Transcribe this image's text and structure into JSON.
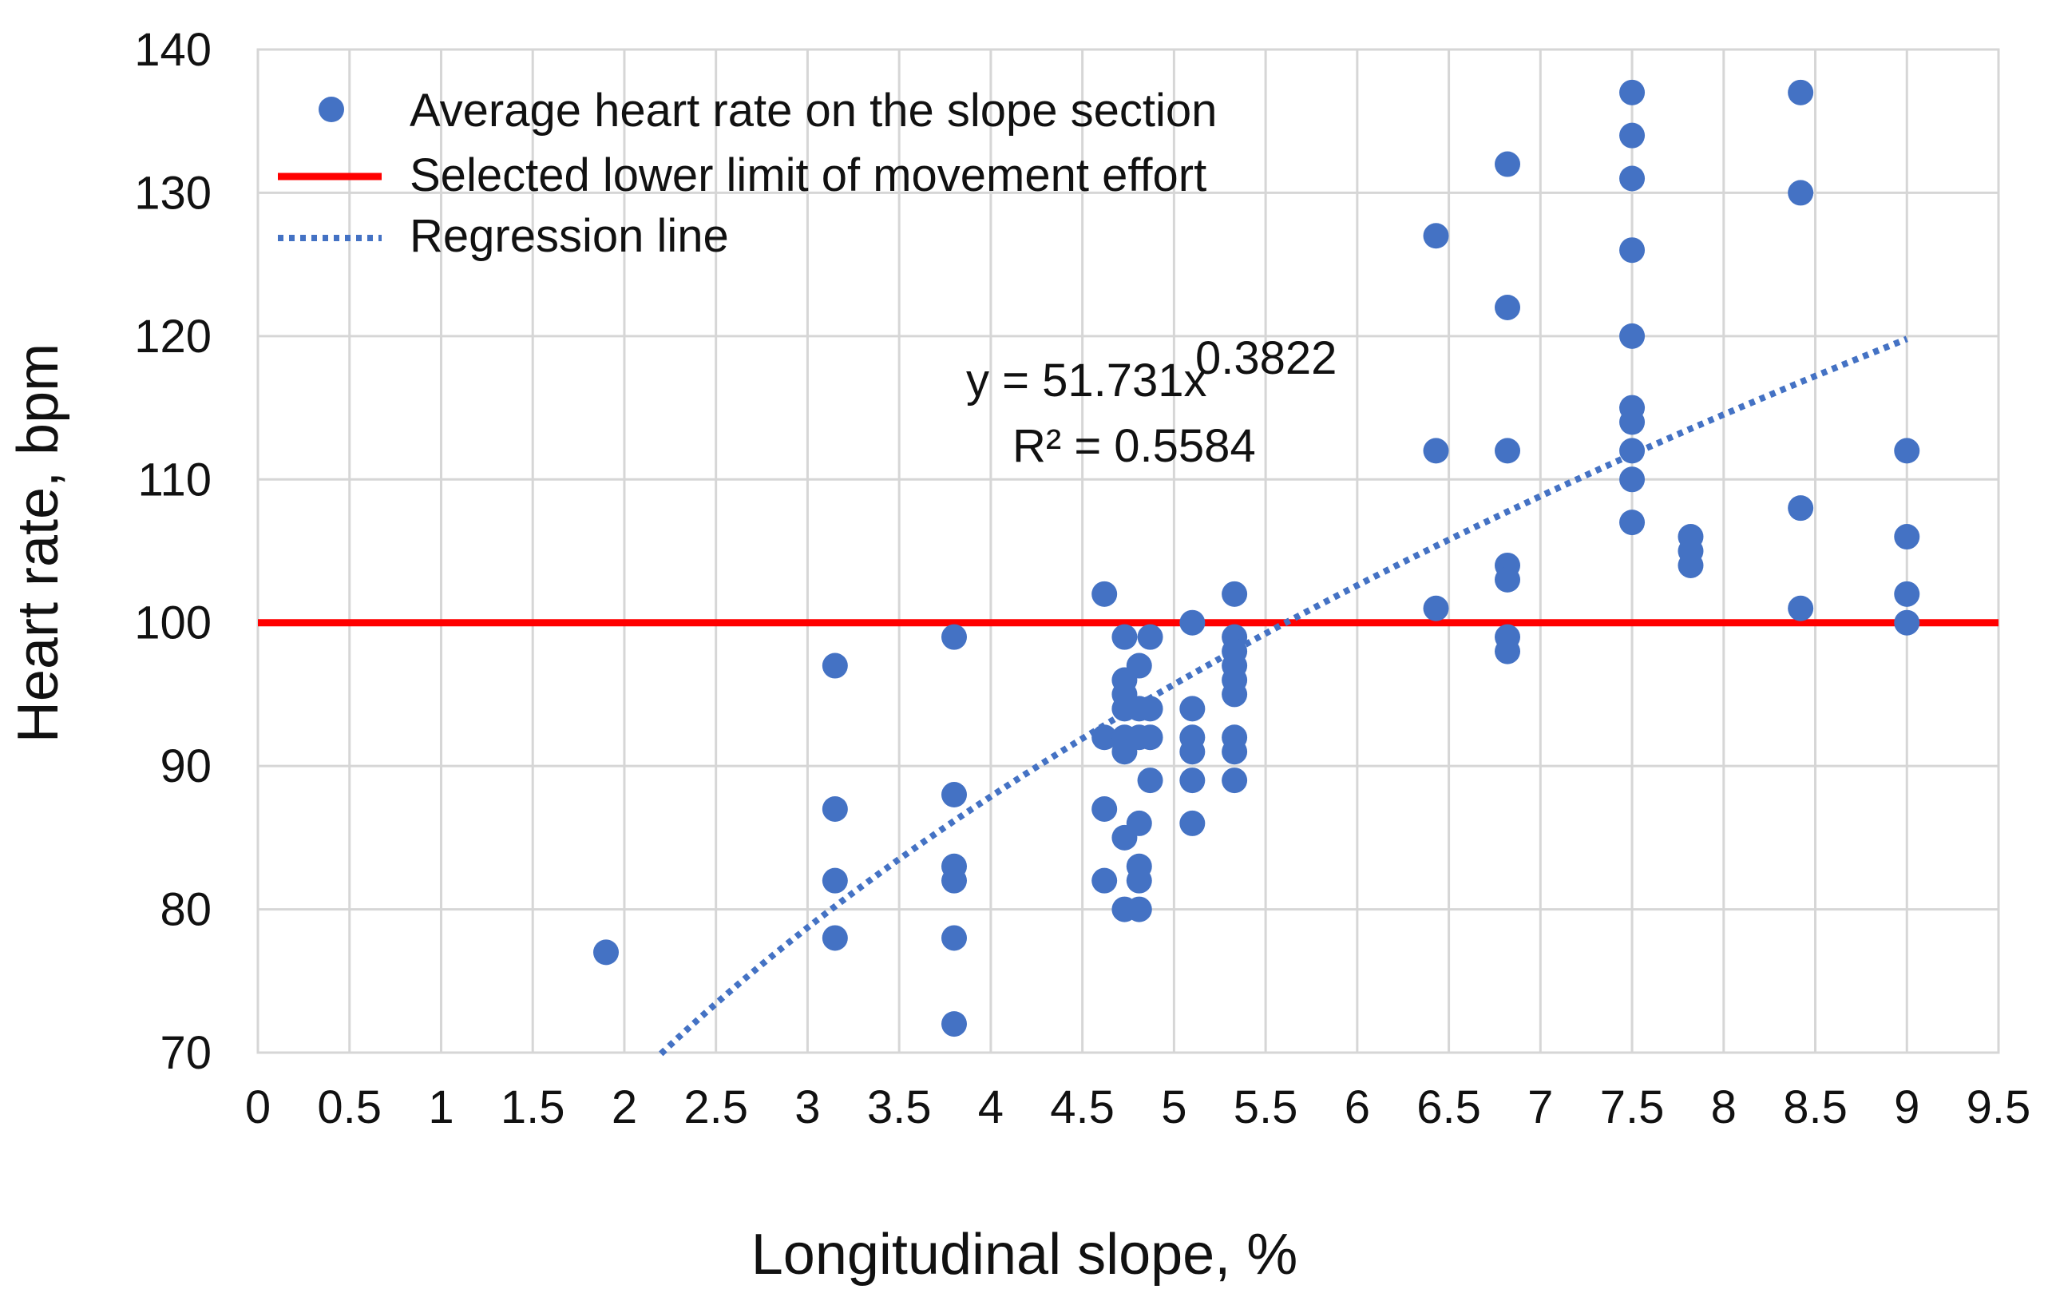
{
  "chart_data": {
    "type": "scatter",
    "title": "",
    "xlabel": "Longitudinal slope, %",
    "ylabel": "Heart rate, bpm",
    "xlim": [
      0,
      9.5
    ],
    "ylim": [
      70,
      140
    ],
    "x_ticks": [
      "0",
      "0.5",
      "1",
      "1.5",
      "2",
      "2.5",
      "3",
      "3.5",
      "4",
      "4.5",
      "5",
      "5.5",
      "6",
      "6.5",
      "7",
      "7.5",
      "8",
      "8.5",
      "9",
      "9.5"
    ],
    "y_ticks": [
      "70",
      "80",
      "90",
      "100",
      "110",
      "120",
      "130",
      "140"
    ],
    "grid": true,
    "legend_position": "top-left",
    "legend": [
      "Average heart rate on the slope section",
      "Selected lower limit of movement effort",
      "Regression line"
    ],
    "colors": {
      "points": "#4472C4",
      "limit_line": "#FF0000",
      "regression": "#4472C4"
    },
    "series": [
      {
        "name": "Average heart rate on the slope section",
        "type": "scatter",
        "points": [
          [
            1.9,
            77
          ],
          [
            3.15,
            97
          ],
          [
            3.15,
            87
          ],
          [
            3.15,
            82
          ],
          [
            3.15,
            78
          ],
          [
            3.8,
            99
          ],
          [
            3.8,
            88
          ],
          [
            3.8,
            83
          ],
          [
            3.8,
            82
          ],
          [
            3.8,
            78
          ],
          [
            3.8,
            72
          ],
          [
            4.62,
            102
          ],
          [
            4.62,
            92
          ],
          [
            4.62,
            87
          ],
          [
            4.62,
            82
          ],
          [
            4.73,
            99
          ],
          [
            4.73,
            96
          ],
          [
            4.73,
            95
          ],
          [
            4.73,
            94
          ],
          [
            4.73,
            92
          ],
          [
            4.73,
            91
          ],
          [
            4.73,
            85
          ],
          [
            4.73,
            80
          ],
          [
            4.81,
            97
          ],
          [
            4.81,
            94
          ],
          [
            4.81,
            92
          ],
          [
            4.81,
            86
          ],
          [
            4.81,
            83
          ],
          [
            4.81,
            82
          ],
          [
            4.81,
            80
          ],
          [
            4.87,
            99
          ],
          [
            4.87,
            94
          ],
          [
            4.87,
            92
          ],
          [
            4.87,
            89
          ],
          [
            5.1,
            100
          ],
          [
            5.1,
            94
          ],
          [
            5.1,
            92
          ],
          [
            5.1,
            91
          ],
          [
            5.1,
            89
          ],
          [
            5.1,
            86
          ],
          [
            5.33,
            102
          ],
          [
            5.33,
            99
          ],
          [
            5.33,
            98
          ],
          [
            5.33,
            97
          ],
          [
            5.33,
            96
          ],
          [
            5.33,
            95
          ],
          [
            5.33,
            92
          ],
          [
            5.33,
            91
          ],
          [
            5.33,
            89
          ],
          [
            6.43,
            127
          ],
          [
            6.43,
            112
          ],
          [
            6.43,
            101
          ],
          [
            6.82,
            132
          ],
          [
            6.82,
            122
          ],
          [
            6.82,
            112
          ],
          [
            6.82,
            104
          ],
          [
            6.82,
            103
          ],
          [
            6.82,
            99
          ],
          [
            6.82,
            98
          ],
          [
            7.5,
            137
          ],
          [
            7.5,
            134
          ],
          [
            7.5,
            131
          ],
          [
            7.5,
            126
          ],
          [
            7.5,
            120
          ],
          [
            7.5,
            115
          ],
          [
            7.5,
            114
          ],
          [
            7.5,
            112
          ],
          [
            7.5,
            110
          ],
          [
            7.5,
            107
          ],
          [
            7.82,
            106
          ],
          [
            7.82,
            105
          ],
          [
            7.82,
            104
          ],
          [
            8.42,
            137
          ],
          [
            8.42,
            130
          ],
          [
            8.42,
            108
          ],
          [
            8.42,
            101
          ],
          [
            9.0,
            112
          ],
          [
            9.0,
            106
          ],
          [
            9.0,
            102
          ],
          [
            9.0,
            100
          ]
        ]
      },
      {
        "name": "Selected lower limit of movement effort",
        "type": "hline",
        "value": 100
      },
      {
        "name": "Regression line",
        "type": "power-fit",
        "a": 51.731,
        "b": 0.3822,
        "x_range": [
          2.2,
          9.0
        ]
      }
    ],
    "annotations": {
      "equation_base": "y = 51.731x",
      "equation_exponent": "0.3822",
      "r_squared": "R² = 0.5584"
    }
  }
}
